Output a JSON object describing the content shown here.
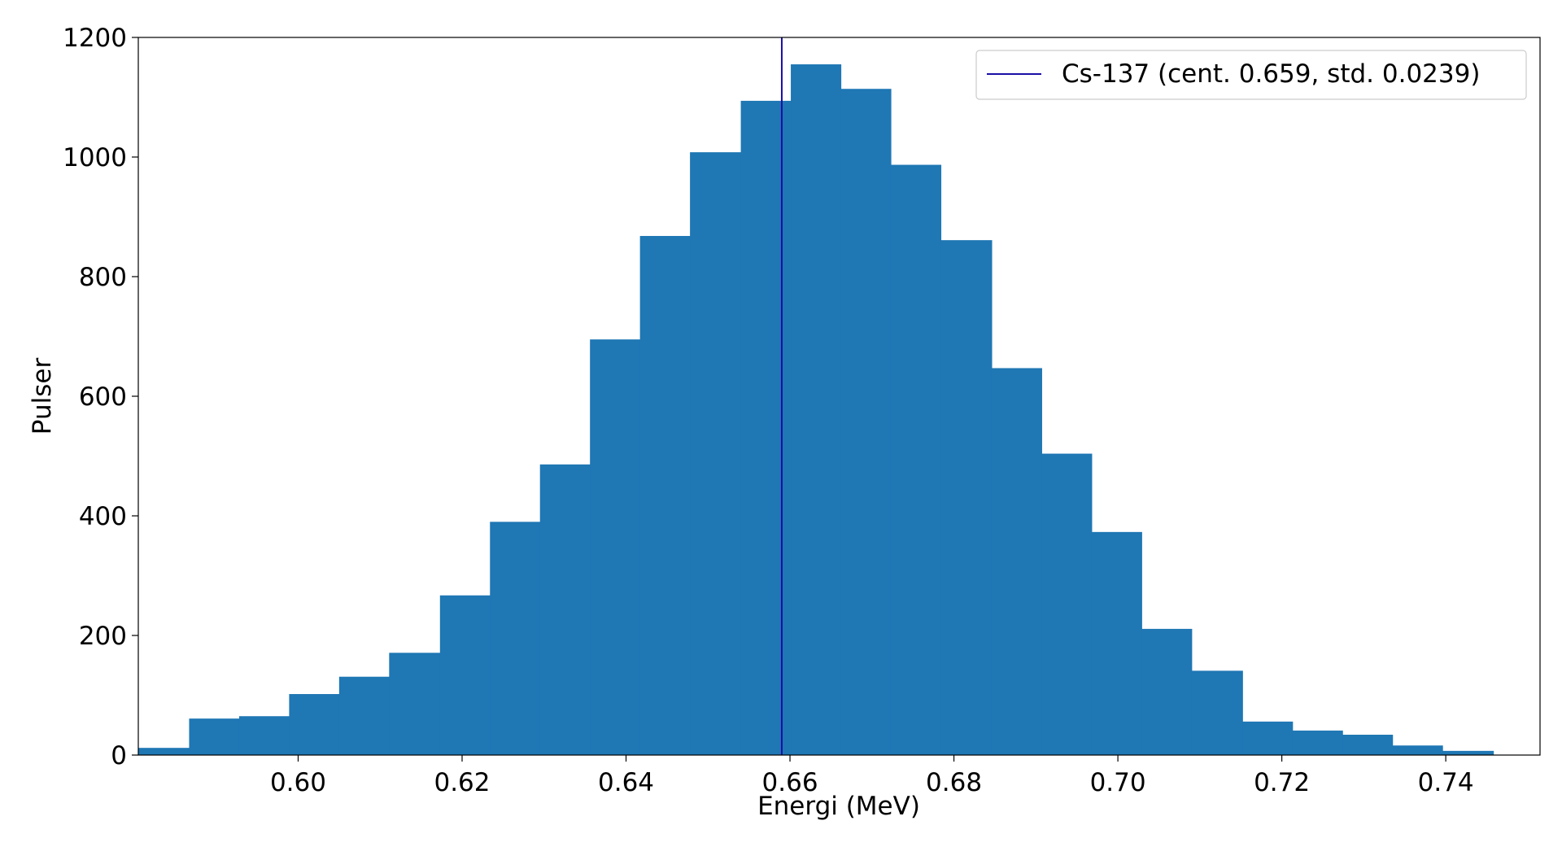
{
  "chart_data": {
    "type": "bar",
    "title": "",
    "xlabel": "Energi (MeV)",
    "ylabel": "Pulser",
    "xlim": [
      0.5805,
      0.7515
    ],
    "ylim": [
      0,
      1200
    ],
    "xticks": [
      0.6,
      0.62,
      0.64,
      0.66,
      0.68,
      0.7,
      0.72,
      0.74
    ],
    "xtick_labels": [
      "0.60",
      "0.62",
      "0.64",
      "0.66",
      "0.68",
      "0.70",
      "0.72",
      "0.74"
    ],
    "yticks": [
      0,
      200,
      400,
      600,
      800,
      1000,
      1200
    ],
    "ytick_labels": [
      "0",
      "200",
      "400",
      "600",
      "800",
      "1000",
      "1200"
    ],
    "bin_edges": [
      0.5805,
      0.5867,
      0.5928,
      0.5989,
      0.605,
      0.6111,
      0.6173,
      0.6234,
      0.6295,
      0.6356,
      0.6417,
      0.6478,
      0.654,
      0.6601,
      0.6662,
      0.6723,
      0.6784,
      0.6846,
      0.6907,
      0.6968,
      0.7029,
      0.709,
      0.7152,
      0.7213,
      0.7274,
      0.7335,
      0.7396,
      0.7458
    ],
    "values": [
      12,
      61,
      65,
      102,
      131,
      171,
      267,
      390,
      486,
      695,
      868,
      1008,
      1094,
      1155,
      1114,
      987,
      861,
      647,
      504,
      373,
      211,
      141,
      56,
      41,
      34,
      16,
      7
    ],
    "bar_color": "#1f77b4",
    "vline": {
      "x": 0.659,
      "color": "#1a0ea6"
    },
    "legend": {
      "position": "top-right",
      "entries": [
        {
          "label": "Cs-137 (cent. 0.659, std. 0.0239)",
          "color": "#1a0ea6"
        }
      ]
    },
    "grid": false
  }
}
